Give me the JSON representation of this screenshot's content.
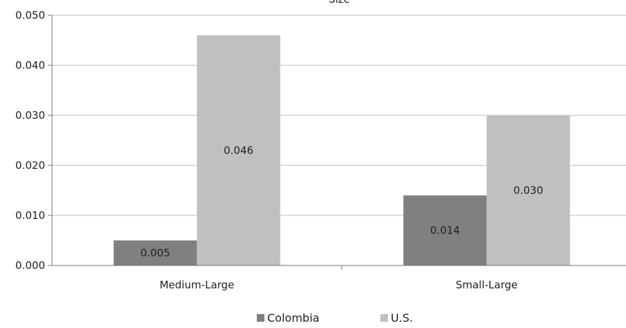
{
  "chart_data": {
    "type": "bar",
    "title": "Size",
    "categories": [
      "Medium-Large",
      "Small-Large"
    ],
    "series": [
      {
        "name": "Colombia",
        "values": [
          0.005,
          0.014
        ],
        "labels": [
          "0.005",
          "0.014"
        ],
        "color": "#808080"
      },
      {
        "name": "U.S.",
        "values": [
          0.046,
          0.03
        ],
        "labels": [
          "0.046",
          "0.030"
        ],
        "color": "#c0c0c0"
      }
    ],
    "ylim": [
      0,
      0.05
    ],
    "yticks": [
      0.0,
      0.01,
      0.02,
      0.03,
      0.04,
      0.05
    ],
    "ytick_labels": [
      "0.000",
      "0.010",
      "0.020",
      "0.030",
      "0.040",
      "0.050"
    ],
    "grid": true,
    "legend_position": "bottom"
  }
}
